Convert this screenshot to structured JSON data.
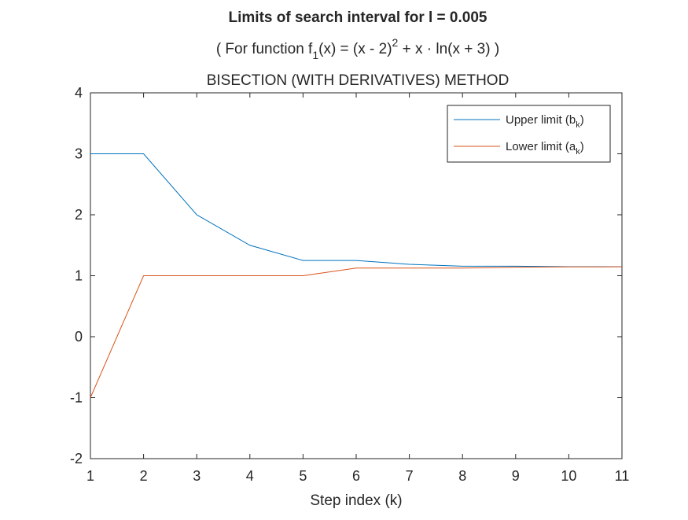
{
  "chart_data": {
    "type": "line",
    "title": "Limits of search interval for l = 0.005",
    "subtitle": {
      "pre": "( For function f",
      "sub1": "1",
      "mid1": "(x) = (x - 2)",
      "sup": "2",
      "post": " + x · ln(x + 3) )"
    },
    "subtitle2": "BISECTION (WITH DERIVATIVES) METHOD",
    "xlabel": "Step index (k)",
    "ylabel": "",
    "xlim": [
      1,
      11
    ],
    "ylim": [
      -2,
      4
    ],
    "xticks": [
      1,
      2,
      3,
      4,
      5,
      6,
      7,
      8,
      9,
      10,
      11
    ],
    "yticks": [
      -2,
      -1,
      0,
      1,
      2,
      3,
      4
    ],
    "grid": false,
    "legend_position": "top-right",
    "x": [
      1,
      2,
      3,
      4,
      5,
      6,
      7,
      8,
      9,
      10,
      11
    ],
    "series": [
      {
        "name": "Upper limit (b",
        "name_sub": "k",
        "name_close": ")",
        "color": "#0072BD",
        "values": [
          3,
          3,
          2,
          1.5,
          1.25,
          1.25,
          1.1875,
          1.15625,
          1.15625,
          1.1484,
          1.1484
        ]
      },
      {
        "name": "Lower limit (a",
        "name_sub": "k",
        "name_close": ")",
        "color": "#D95319",
        "values": [
          -1,
          1,
          1,
          1,
          1,
          1.125,
          1.125,
          1.125,
          1.1406,
          1.1445,
          1.1465
        ]
      }
    ]
  }
}
